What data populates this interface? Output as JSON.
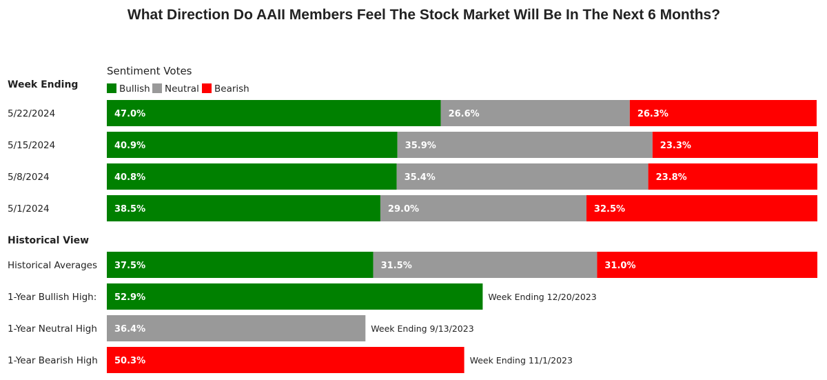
{
  "title": "What Direction Do AAII Members Feel The Stock Market Will Be In The Next 6 Months?",
  "legend": {
    "title": "Sentiment Votes",
    "items": [
      {
        "name": "Bullish",
        "color": "#008000"
      },
      {
        "name": "Neutral",
        "color": "#999999"
      },
      {
        "name": "Bearish",
        "color": "#ff0000"
      }
    ]
  },
  "chart_data": {
    "type": "bar",
    "orientation": "horizontal",
    "stacked": true,
    "unit": "%",
    "xlim": [
      0,
      100
    ],
    "series": [
      {
        "name": "Bullish",
        "color": "#008000"
      },
      {
        "name": "Neutral",
        "color": "#999999"
      },
      {
        "name": "Bearish",
        "color": "#ff0000"
      }
    ],
    "sections": [
      {
        "label": "Week Ending",
        "rows": [
          {
            "label": "5/22/2024",
            "values": [
              47.0,
              26.6,
              26.3
            ]
          },
          {
            "label": "5/15/2024",
            "values": [
              40.9,
              35.9,
              23.3
            ]
          },
          {
            "label": "5/8/2024",
            "values": [
              40.8,
              35.4,
              23.8
            ]
          },
          {
            "label": "5/1/2024",
            "values": [
              38.5,
              29.0,
              32.5
            ]
          }
        ]
      },
      {
        "label": "Historical View",
        "rows": [
          {
            "label": "Historical Averages",
            "values": [
              37.5,
              31.5,
              31.0
            ]
          },
          {
            "label": "1-Year Bullish High:",
            "single": "Bullish",
            "value": 52.9,
            "note": "Week Ending 12/20/2023"
          },
          {
            "label": "1-Year Neutral High",
            "single": "Neutral",
            "value": 36.4,
            "note": "Week Ending 9/13/2023"
          },
          {
            "label": "1-Year Bearish High",
            "single": "Bearish",
            "value": 50.3,
            "note": "Week Ending 11/1/2023"
          }
        ]
      }
    ]
  }
}
